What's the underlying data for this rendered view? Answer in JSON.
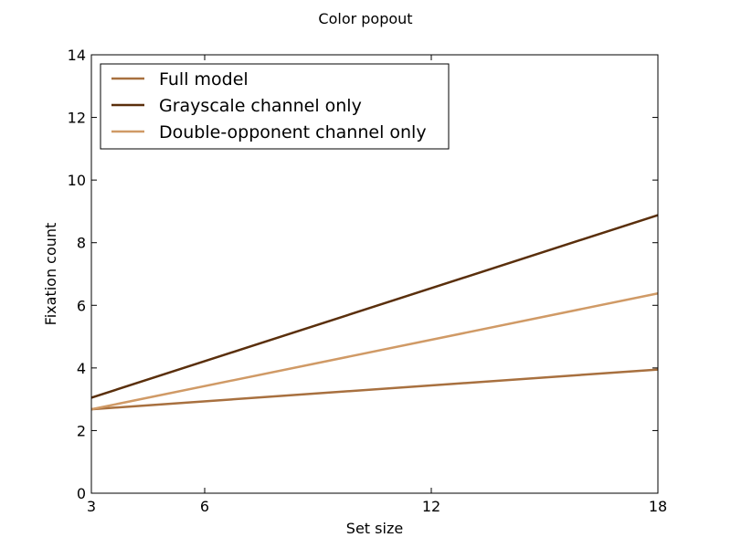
{
  "chart_data": {
    "type": "line",
    "title": "Color popout",
    "xlabel": "Set size",
    "ylabel": "Fixation count",
    "xlim": [
      3,
      18
    ],
    "ylim": [
      0,
      14
    ],
    "xticks": [
      "3",
      "6",
      "12",
      "18"
    ],
    "yticks": [
      "0",
      "2",
      "4",
      "6",
      "8",
      "10",
      "12",
      "14"
    ],
    "grid": false,
    "legend_position": "top-left",
    "series": [
      {
        "name": "Full model",
        "color": "#a8703f",
        "x": [
          3,
          18
        ],
        "y": [
          2.68,
          3.95
        ]
      },
      {
        "name": "Grayscale channel only",
        "color": "#5a2f0c",
        "x": [
          3,
          18
        ],
        "y": [
          3.05,
          8.88
        ]
      },
      {
        "name": "Double-opponent channel only",
        "color": "#d09a66",
        "x": [
          3,
          18
        ],
        "y": [
          2.68,
          6.38
        ]
      }
    ]
  }
}
